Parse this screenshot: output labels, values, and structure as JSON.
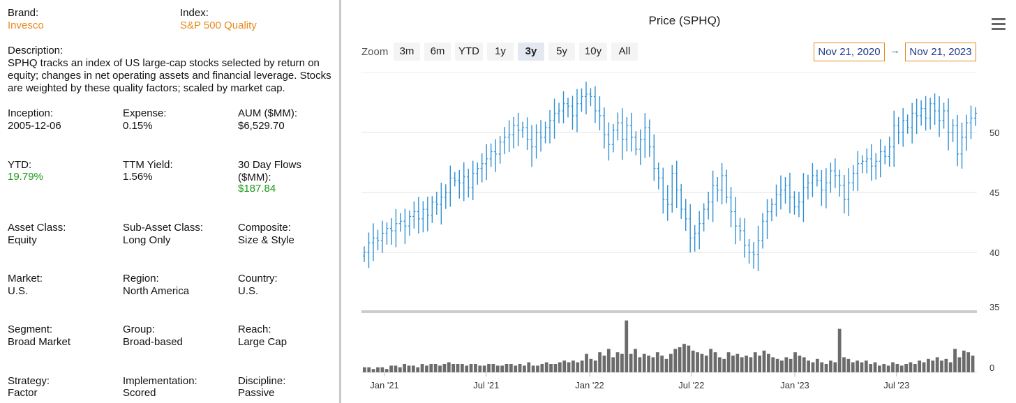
{
  "fund": {
    "brand_label": "Brand:",
    "brand": "Invesco",
    "index_label": "Index:",
    "index": "S&P 500 Quality",
    "description_label": "Description:",
    "description": "SPHQ tracks an index of US large-cap stocks selected by return on equity; changes in net operating assets and financial leverage. Stocks are weighted by these quality factors; scaled by market cap.",
    "fields": [
      {
        "label": "Inception:",
        "value": "2005-12-06"
      },
      {
        "label": "Expense:",
        "value": "0.15%"
      },
      {
        "label": "AUM ($MM):",
        "value": "$6,529.70"
      },
      {
        "label": "YTD:",
        "value": "19.79%"
      },
      {
        "label": "TTM Yield:",
        "value": "1.56%"
      },
      {
        "label": "30 Day Flows ($MM):",
        "value": "$187.84"
      },
      {
        "label": "Asset Class:",
        "value": "Equity"
      },
      {
        "label": "Sub-Asset Class:",
        "value": "Long Only"
      },
      {
        "label": "Composite:",
        "value": "Size & Style"
      },
      {
        "label": "Market:",
        "value": "U.S."
      },
      {
        "label": "Region:",
        "value": "North America"
      },
      {
        "label": "Country:",
        "value": "U.S."
      },
      {
        "label": "Segment:",
        "value": "Broad Market"
      },
      {
        "label": "Group:",
        "value": "Broad-based"
      },
      {
        "label": "Reach:",
        "value": "Large Cap"
      },
      {
        "label": "Strategy:",
        "value": "Factor"
      },
      {
        "label": "Implementation:",
        "value": "Scored"
      },
      {
        "label": "Discipline:",
        "value": "Passive"
      }
    ]
  },
  "chart_header": {
    "title": "Price (SPHQ)",
    "zoom_label": "Zoom",
    "zoom_buttons": [
      "3m",
      "6m",
      "YTD",
      "1y",
      "3y",
      "5y",
      "10y",
      "All"
    ],
    "selected_zoom": "3y",
    "from_date": "Nov 21, 2020",
    "arrow": "→",
    "to_date": "Nov 21, 2023"
  },
  "colors": {
    "price": "#2f8fd4",
    "volume": "#6b6b6b",
    "accent": "#e8891c",
    "positive": "#1a9a1a"
  },
  "chart_data": {
    "type": "ohlc",
    "x_ticks": [
      "Jan '21",
      "Jul '21",
      "Jan '22",
      "Jul '22",
      "Jan '23",
      "Jul '23"
    ],
    "x_tick_dates": [
      "2021-01-01",
      "2021-07-01",
      "2022-01-01",
      "2022-07-01",
      "2023-01-01",
      "2023-07-01"
    ],
    "x_range": [
      "2020-11-21",
      "2023-11-21"
    ],
    "y_ticks": [
      40,
      45,
      50
    ],
    "volume_ticks": [
      0,
      35
    ],
    "series": [
      {
        "kind": "price",
        "weekly_close": [
          40.0,
          40.8,
          41.2,
          41.0,
          41.6,
          42.0,
          41.8,
          42.4,
          42.6,
          42.2,
          43.0,
          43.4,
          42.8,
          43.6,
          43.1,
          44.2,
          44.0,
          44.6,
          45.0,
          46.2,
          46.0,
          45.8,
          46.3,
          45.4,
          46.6,
          47.0,
          47.4,
          47.8,
          48.4,
          48.2,
          49.2,
          49.6,
          49.8,
          50.6,
          50.2,
          50.4,
          49.4,
          48.8,
          50.0,
          49.6,
          50.4,
          51.0,
          51.6,
          51.8,
          52.4,
          52.2,
          51.4,
          52.4,
          53.0,
          53.2,
          53.0,
          51.8,
          51.4,
          49.8,
          49.0,
          50.2,
          50.8,
          49.4,
          50.6,
          49.6,
          48.6,
          49.4,
          50.4,
          48.8,
          47.0,
          46.2,
          44.4,
          44.0,
          46.6,
          45.2,
          43.6,
          42.8,
          41.2,
          41.6,
          42.4,
          43.6,
          44.2,
          45.6,
          45.2,
          46.4,
          44.6,
          43.4,
          42.2,
          41.8,
          40.6,
          40.0,
          39.8,
          41.0,
          42.6,
          43.4,
          44.0,
          44.8,
          45.2,
          45.6,
          44.6,
          43.8,
          44.2,
          45.4,
          45.8,
          46.4,
          46.0,
          45.2,
          45.8,
          46.8,
          46.4,
          45.6,
          44.4,
          45.8,
          46.6,
          47.4,
          47.6,
          47.8,
          47.2,
          47.6,
          48.4,
          48.0,
          48.8,
          50.6,
          50.0,
          51.0,
          50.4,
          51.6,
          51.4,
          52.0,
          51.2,
          52.4,
          51.8,
          51.0,
          51.8,
          50.0,
          50.6,
          48.2,
          49.6,
          50.8,
          51.2,
          51.6
        ]
      },
      {
        "kind": "volume",
        "weekly_volume": [
          3,
          3,
          2,
          3,
          3,
          2,
          4,
          4,
          3,
          5,
          4,
          4,
          3,
          5,
          4,
          5,
          5,
          4,
          5,
          6,
          5,
          5,
          5,
          4,
          5,
          5,
          4,
          4,
          5,
          5,
          4,
          4,
          5,
          5,
          4,
          5,
          4,
          6,
          4,
          4,
          5,
          6,
          5,
          5,
          6,
          7,
          6,
          7,
          6,
          7,
          11,
          8,
          7,
          12,
          10,
          14,
          9,
          12,
          11,
          31,
          11,
          14,
          9,
          11,
          10,
          9,
          12,
          10,
          8,
          11,
          14,
          15,
          17,
          16,
          13,
          12,
          11,
          10,
          14,
          12,
          9,
          8,
          12,
          10,
          11,
          9,
          10,
          9,
          12,
          10,
          13,
          11,
          9,
          8,
          7,
          9,
          8,
          12,
          10,
          9,
          7,
          6,
          8,
          6,
          5,
          7,
          6,
          26,
          9,
          8,
          6,
          7,
          6,
          7,
          5,
          6,
          4,
          5,
          4,
          6,
          5,
          4,
          5,
          6,
          5,
          7,
          6,
          8,
          7,
          9,
          7,
          8,
          6,
          14,
          9,
          13,
          12,
          10
        ]
      }
    ]
  }
}
